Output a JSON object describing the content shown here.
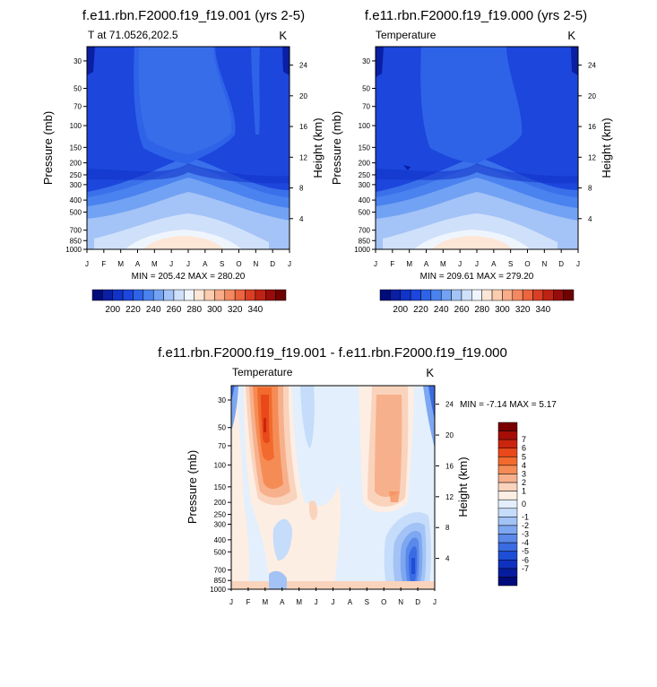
{
  "chart_data": [
    {
      "type": "heatmap",
      "id": "p1",
      "title": "f.e11.rbn.F2000.f19_f19.001 (yrs 2-5)",
      "left_label": "T at 71.0526,202.5",
      "right_label": "K",
      "ylabel": "Pressure (mb)",
      "ylabel_right": "Height (km)",
      "x_ticks": [
        "J",
        "F",
        "M",
        "A",
        "M",
        "J",
        "J",
        "A",
        "S",
        "O",
        "N",
        "D",
        "J"
      ],
      "y_ticks": [
        30,
        50,
        70,
        100,
        150,
        200,
        250,
        300,
        400,
        500,
        700,
        850,
        1000
      ],
      "y_range_mb": [
        23,
        1000
      ],
      "height_ticks_km": [
        4,
        8,
        12,
        16,
        20,
        24
      ],
      "stats": "MIN = 205.42 MAX = 280.20",
      "min": 205.42,
      "max": 280.2
    },
    {
      "type": "heatmap",
      "id": "p2",
      "title": "f.e11.rbn.F2000.f19_f19.000 (yrs 2-5)",
      "left_label": "Temperature",
      "right_label": "K",
      "ylabel": "Pressure (mb)",
      "ylabel_right": "Height (km)",
      "x_ticks": [
        "J",
        "F",
        "M",
        "A",
        "M",
        "J",
        "J",
        "A",
        "S",
        "O",
        "N",
        "D",
        "J"
      ],
      "y_ticks": [
        30,
        50,
        70,
        100,
        150,
        200,
        250,
        300,
        400,
        500,
        700,
        850,
        1000
      ],
      "y_range_mb": [
        23,
        1000
      ],
      "height_ticks_km": [
        4,
        8,
        12,
        16,
        20,
        24
      ],
      "stats": "MIN = 209.61 MAX = 279.20",
      "min": 209.61,
      "max": 279.2
    },
    {
      "type": "heatmap",
      "id": "p3",
      "title": "f.e11.rbn.F2000.f19_f19.001 - f.e11.rbn.F2000.f19_f19.000",
      "left_label": "Temperature",
      "right_label": "K",
      "ylabel": "Pressure (mb)",
      "ylabel_right": "Height (km)",
      "x_ticks": [
        "J",
        "F",
        "M",
        "A",
        "M",
        "J",
        "J",
        "A",
        "S",
        "O",
        "N",
        "D",
        "J"
      ],
      "y_ticks": [
        30,
        50,
        70,
        100,
        150,
        200,
        250,
        300,
        400,
        500,
        700,
        850,
        1000
      ],
      "y_range_mb": [
        23,
        1000
      ],
      "height_ticks_km": [
        4,
        8,
        12,
        16,
        20,
        24
      ],
      "stats": "MIN =  -7.14 MAX =   5.17",
      "min": -7.14,
      "max": 5.17
    }
  ],
  "colorbar_abs": {
    "labels": [
      "200",
      "220",
      "240",
      "260",
      "280",
      "300",
      "320",
      "340"
    ],
    "colors": [
      "#000c7a",
      "#0a1fa3",
      "#1233c7",
      "#1c46dc",
      "#2e63e8",
      "#4a82ef",
      "#72a2f3",
      "#a4c3f7",
      "#cfe0fa",
      "#eff5fd",
      "#fde6d6",
      "#fbcdb0",
      "#f8ac88",
      "#f38961",
      "#eb6540",
      "#d93f24",
      "#bd2314",
      "#970c0a",
      "#6e0303"
    ]
  },
  "colorbar_diff": {
    "labels": [
      "7",
      "6",
      "5",
      "4",
      "3",
      "2",
      "1",
      "0",
      "-1",
      "-2",
      "-3",
      "-4",
      "-5",
      "-6",
      "-7"
    ],
    "colors": [
      "#780000",
      "#a40e07",
      "#cb250f",
      "#e8481a",
      "#f26a2e",
      "#f58c55",
      "#f7b08c",
      "#fad3bd",
      "#fdeee4",
      "#e3effc",
      "#c5dcfa",
      "#a3c3f6",
      "#7ea7f1",
      "#5a89ea",
      "#3a6be2",
      "#1e4ed6",
      "#0f31c0",
      "#061c9e",
      "#000c7a"
    ]
  }
}
